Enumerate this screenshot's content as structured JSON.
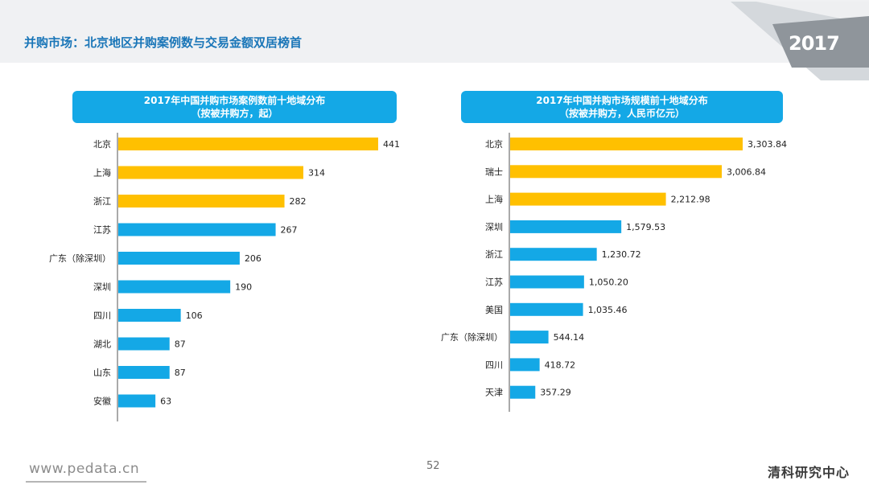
{
  "page": {
    "title": "并购市场：北京地区并购案例数与交易金额双居榜首",
    "year_badge": "2017",
    "footer_url": "www.pedata.cn",
    "page_number": "52",
    "footer_logo": "清科研究中心"
  },
  "colors": {
    "accent_blue": "#14a8e6",
    "highlight_gold": "#ffc000",
    "title_blue": "#1a76b8"
  },
  "chart_data": [
    {
      "type": "bar",
      "orientation": "horizontal",
      "title_line1": "2017年中国并购市场案例数前十地域分布",
      "title_line2": "（按被并购方，起）",
      "categories": [
        "北京",
        "上海",
        "浙江",
        "江苏",
        "广东（除深圳）",
        "深圳",
        "四川",
        "湖北",
        "山东",
        "安徽"
      ],
      "values": [
        441,
        314,
        282,
        267,
        206,
        190,
        106,
        87,
        87,
        63
      ],
      "value_labels": [
        "441",
        "314",
        "282",
        "267",
        "206",
        "190",
        "106",
        "87",
        "87",
        "63"
      ],
      "highlight_count": 3,
      "xlim": [
        0,
        441
      ]
    },
    {
      "type": "bar",
      "orientation": "horizontal",
      "title_line1": "2017年中国并购市场规模前十地域分布",
      "title_line2": "（按被并购方，人民币亿元）",
      "categories": [
        "北京",
        "瑞士",
        "上海",
        "深圳",
        "浙江",
        "江苏",
        "美国",
        "广东（除深圳）",
        "四川",
        "天津"
      ],
      "values": [
        3303.84,
        3006.84,
        2212.98,
        1579.53,
        1230.72,
        1050.2,
        1035.46,
        544.14,
        418.72,
        357.29
      ],
      "value_labels": [
        "3,303.84",
        "3,006.84",
        "2,212.98",
        "1,579.53",
        "1,230.72",
        "1,050.20",
        "1,035.46",
        "544.14",
        "418.72",
        "357.29"
      ],
      "highlight_count": 3,
      "xlim": [
        0,
        3303.84
      ]
    }
  ]
}
